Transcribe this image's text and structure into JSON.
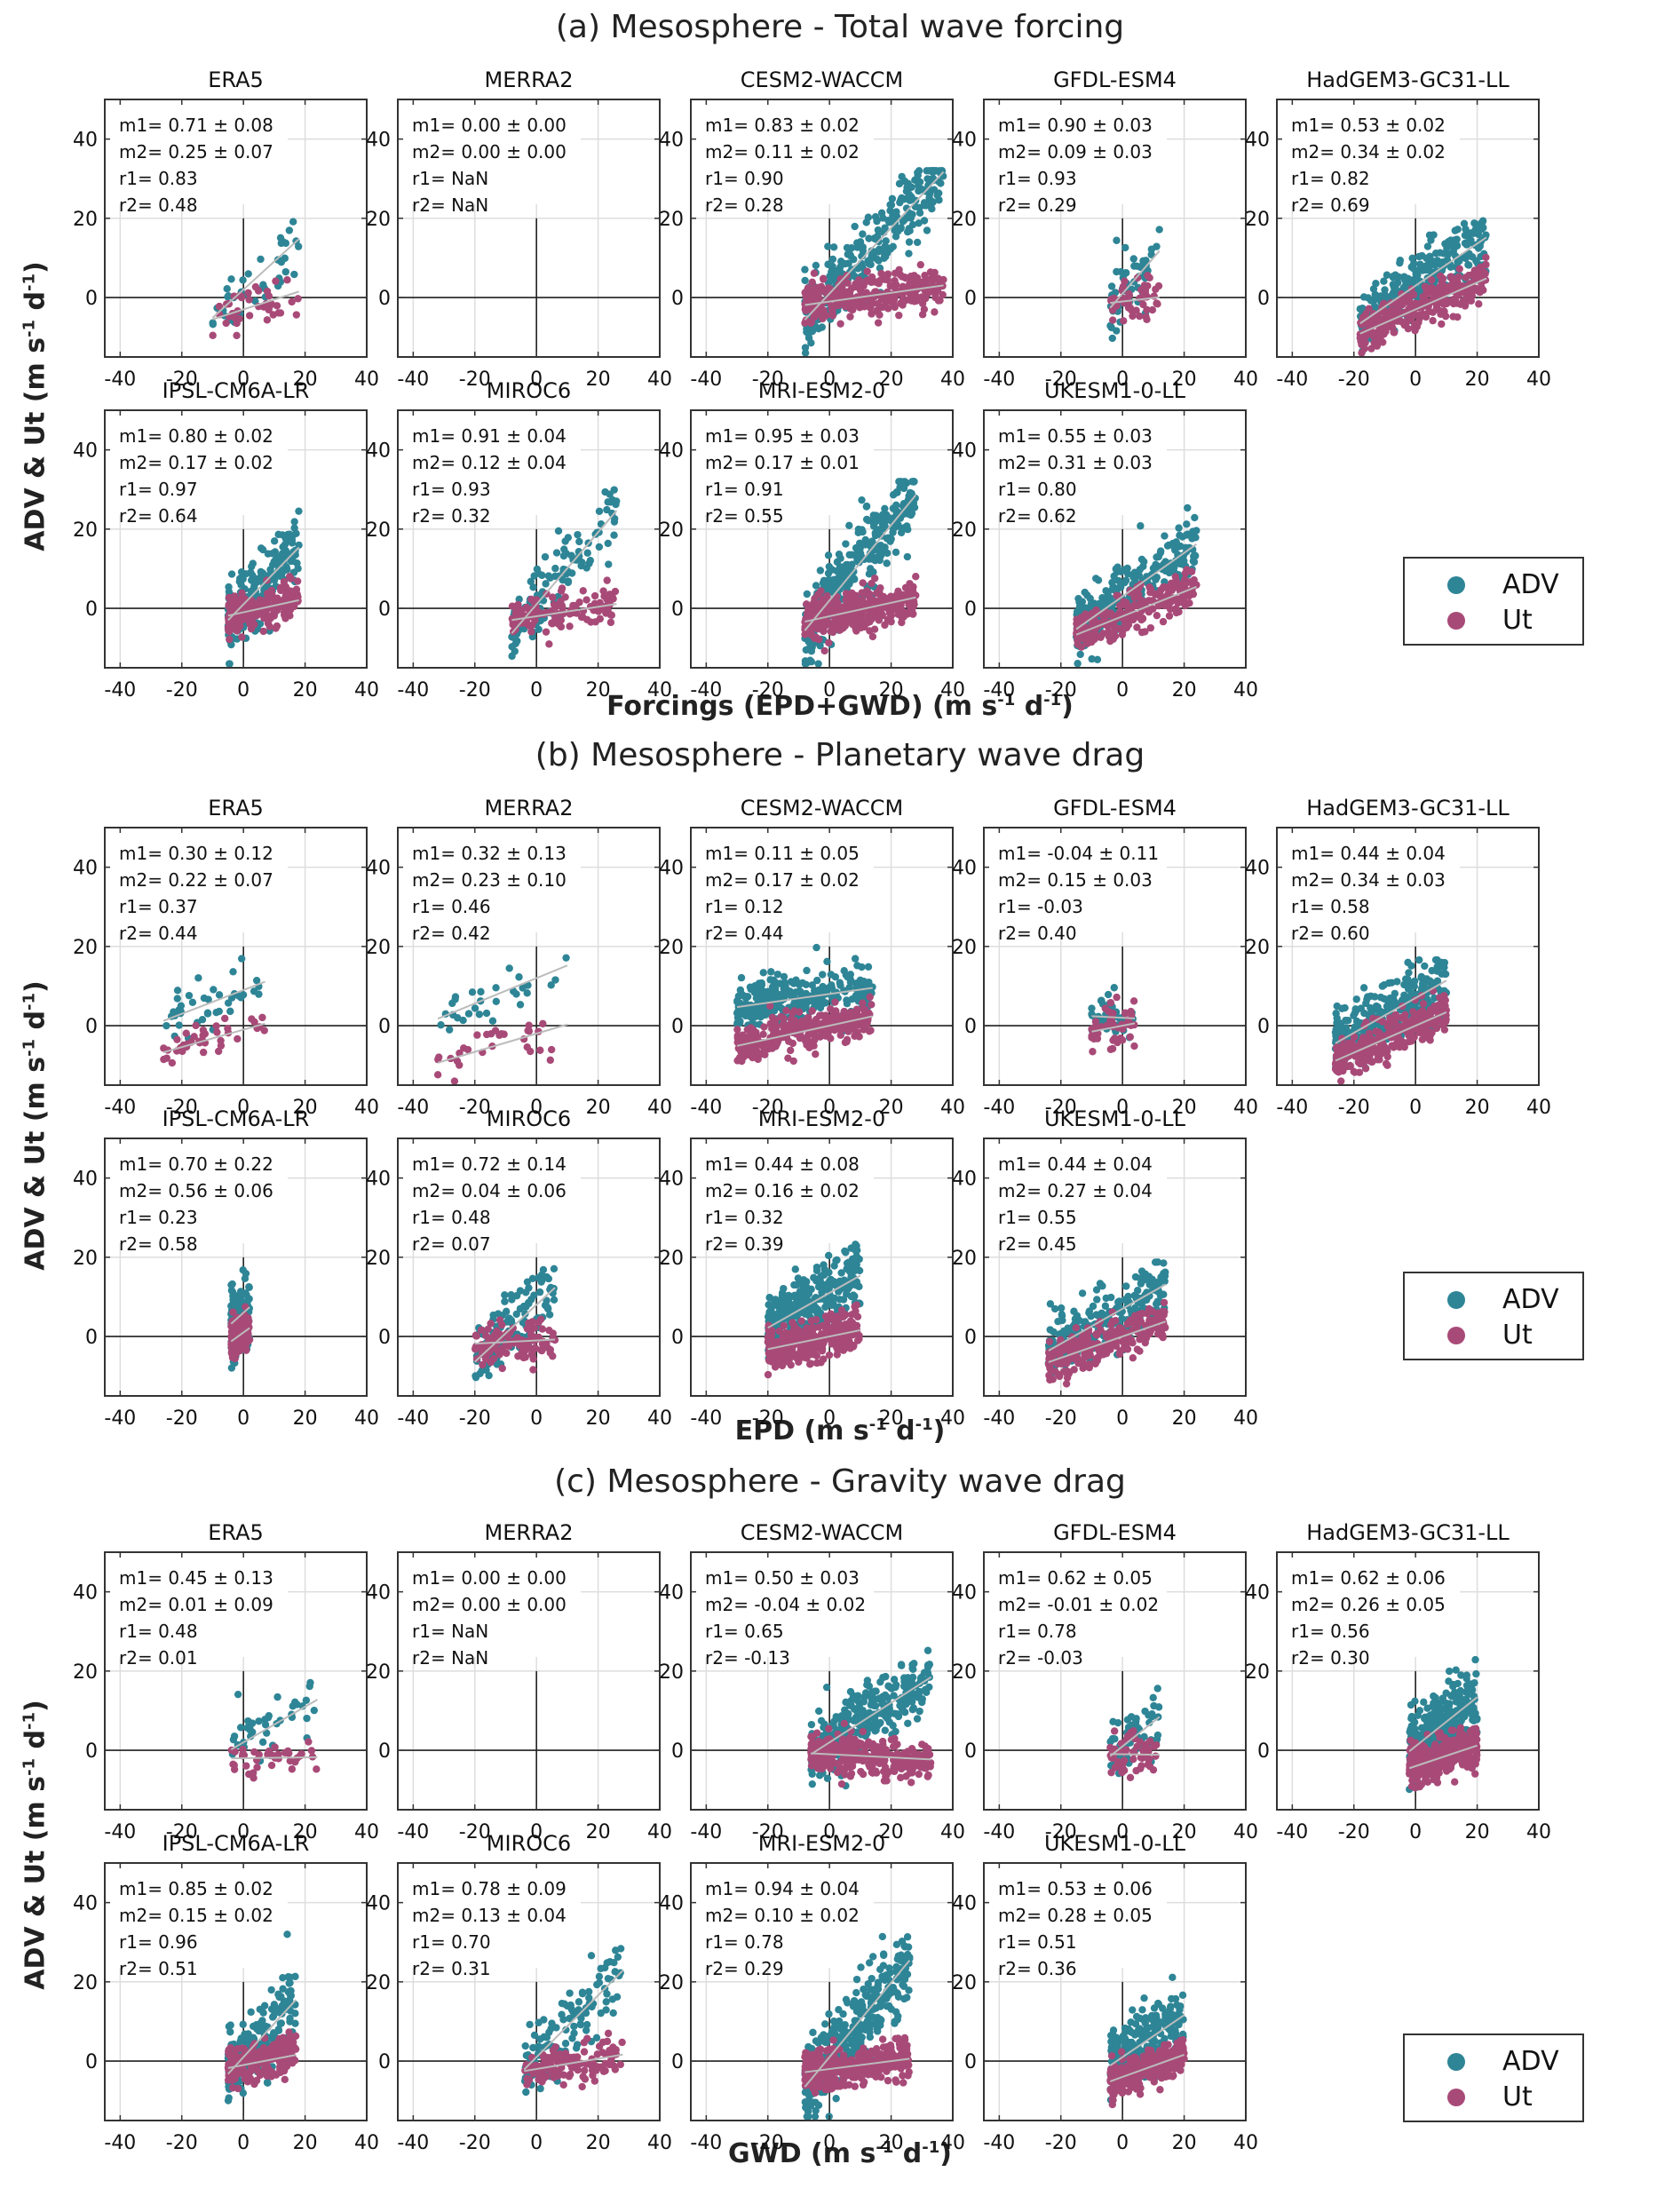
{
  "colors": {
    "adv": "#2e8596",
    "ut": "#a84a78",
    "fit": "#bbbbbb",
    "axis": "#222222",
    "grid": "#dddddd"
  },
  "legend": {
    "items": [
      {
        "label": "ADV",
        "color": "#2e8596"
      },
      {
        "label": "Ut",
        "color": "#a84a78"
      }
    ]
  },
  "sections": [
    {
      "title": "(a) Mesosphere - Total wave forcing",
      "xlabel_main": "Forcings (EPD+GWD) (m s",
      "ylabel": "ADV & Ut  (m s"
    },
    {
      "title": "(b) Mesosphere - Planetary wave drag",
      "xlabel_main": "EPD (m s",
      "ylabel": "ADV & Ut (m s"
    },
    {
      "title": "(c) Mesosphere - Gravity wave drag",
      "xlabel_main": "GWD (m s",
      "ylabel": "ADV & Ut (m s"
    }
  ],
  "units": {
    "sup1": "-1",
    "d": " d",
    "close": ")"
  },
  "chart_data": [
    {
      "type": "scatter",
      "title": "(a) Mesosphere - Total wave forcing",
      "xlabel": "Forcings (EPD+GWD) (m s-1 d-1)",
      "ylabel": "ADV & Ut  (m s-1 d-1)",
      "xlim": [
        -45,
        40
      ],
      "ylim": [
        -15,
        50
      ],
      "xticks": [
        "-40",
        "-20",
        "0",
        "20",
        "40"
      ],
      "yticks": [
        "0",
        "20",
        "40"
      ],
      "grid": true,
      "legend": "right",
      "series_names": [
        "ADV",
        "Ut"
      ],
      "panels": [
        {
          "name": "ERA5",
          "m1": "0.71 ± 0.08",
          "m2": "0.25 ± 0.07",
          "r1": "0.83",
          "r2": "0.48",
          "slope_adv": 0.71,
          "slope_ut": 0.25,
          "xrange": [
            -10,
            18
          ],
          "n": 40,
          "int_adv": 2,
          "int_ut": -3
        },
        {
          "name": "MERRA2",
          "m1": "0.00 ± 0.00",
          "m2": "0.00 ± 0.00",
          "r1": "NaN",
          "r2": "NaN",
          "slope_adv": 0,
          "slope_ut": 0,
          "xrange": [
            0,
            0
          ],
          "n": 0,
          "int_adv": 0,
          "int_ut": 0
        },
        {
          "name": "CESM2-WACCM",
          "m1": "0.83 ± 0.02",
          "m2": "0.11 ± 0.02",
          "r1": "0.90",
          "r2": "0.28",
          "slope_adv": 0.83,
          "slope_ut": 0.11,
          "xrange": [
            -8,
            37
          ],
          "n": 300,
          "int_adv": 1,
          "int_ut": -1
        },
        {
          "name": "GFDL-ESM4",
          "m1": "0.90 ± 0.03",
          "m2": "0.09 ± 0.03",
          "r1": "0.93",
          "r2": "0.29",
          "slope_adv": 0.9,
          "slope_ut": 0.09,
          "xrange": [
            -4,
            12
          ],
          "n": 50,
          "int_adv": 1,
          "int_ut": -1
        },
        {
          "name": "HadGEM3-GC31-LL",
          "m1": "0.53 ± 0.02",
          "m2": "0.34 ± 0.02",
          "r1": "0.82",
          "r2": "0.69",
          "slope_adv": 0.53,
          "slope_ut": 0.34,
          "xrange": [
            -18,
            23
          ],
          "n": 300,
          "int_adv": 3,
          "int_ut": -3
        },
        {
          "name": "IPSL-CM6A-LR",
          "m1": "0.80 ± 0.02",
          "m2": "0.17 ± 0.02",
          "r1": "0.97",
          "r2": "0.64",
          "slope_adv": 0.8,
          "slope_ut": 0.17,
          "xrange": [
            -5,
            18
          ],
          "n": 200,
          "int_adv": 1,
          "int_ut": -1
        },
        {
          "name": "MIROC6",
          "m1": "0.91 ± 0.04",
          "m2": "0.12 ± 0.04",
          "r1": "0.93",
          "r2": "0.32",
          "slope_adv": 0.91,
          "slope_ut": 0.12,
          "xrange": [
            -8,
            26
          ],
          "n": 120,
          "int_adv": 1,
          "int_ut": -2
        },
        {
          "name": "MRI-ESM2-0",
          "m1": "0.95 ± 0.03",
          "m2": "0.17 ± 0.01",
          "r1": "0.91",
          "r2": "0.55",
          "slope_adv": 0.95,
          "slope_ut": 0.17,
          "xrange": [
            -8,
            28
          ],
          "n": 350,
          "int_adv": 2,
          "int_ut": -2
        },
        {
          "name": "UKESM1-0-LL",
          "m1": "0.55 ± 0.03",
          "m2": "0.31 ± 0.03",
          "r1": "0.80",
          "r2": "0.62",
          "slope_adv": 0.55,
          "slope_ut": 0.31,
          "xrange": [
            -15,
            24
          ],
          "n": 250,
          "int_adv": 3,
          "int_ut": -2
        }
      ]
    },
    {
      "type": "scatter",
      "title": "(b) Mesosphere - Planetary wave drag",
      "xlabel": "EPD (m s-1 d-1)",
      "ylabel": "ADV & Ut (m s-1 d-1)",
      "xlim": [
        -45,
        40
      ],
      "ylim": [
        -15,
        50
      ],
      "xticks": [
        "-40",
        "-20",
        "0",
        "20",
        "40"
      ],
      "yticks": [
        "0",
        "20",
        "40"
      ],
      "grid": true,
      "legend": "right",
      "series_names": [
        "ADV",
        "Ut"
      ],
      "panels": [
        {
          "name": "ERA5",
          "m1": "0.30 ± 0.12",
          "m2": "0.22 ± 0.07",
          "r1": "0.37",
          "r2": "0.44",
          "slope_adv": 0.3,
          "slope_ut": 0.22,
          "xrange": [
            -26,
            7
          ],
          "n": 40,
          "int_adv": 9,
          "int_ut": -1
        },
        {
          "name": "MERRA2",
          "m1": "0.32 ± 0.13",
          "m2": "0.23 ± 0.10",
          "r1": "0.46",
          "r2": "0.42",
          "slope_adv": 0.32,
          "slope_ut": 0.23,
          "xrange": [
            -32,
            10
          ],
          "n": 30,
          "int_adv": 12,
          "int_ut": -2
        },
        {
          "name": "CESM2-WACCM",
          "m1": "0.11 ± 0.05",
          "m2": "0.17 ± 0.02",
          "r1": "0.12",
          "r2": "0.44",
          "slope_adv": 0.11,
          "slope_ut": 0.17,
          "xrange": [
            -30,
            14
          ],
          "n": 300,
          "int_adv": 8,
          "int_ut": 0
        },
        {
          "name": "GFDL-ESM4",
          "m1": "-0.04 ± 0.11",
          "m2": "0.15 ± 0.03",
          "r1": "-0.03",
          "r2": "0.40",
          "slope_adv": -0.04,
          "slope_ut": 0.15,
          "xrange": [
            -10,
            4
          ],
          "n": 50,
          "int_adv": 2,
          "int_ut": 0
        },
        {
          "name": "HadGEM3-GC31-LL",
          "m1": "0.44 ± 0.04",
          "m2": "0.34 ± 0.03",
          "r1": "0.58",
          "r2": "0.60",
          "slope_adv": 0.44,
          "slope_ut": 0.34,
          "xrange": [
            -26,
            10
          ],
          "n": 300,
          "int_adv": 7,
          "int_ut": 0
        },
        {
          "name": "IPSL-CM6A-LR",
          "m1": "0.70 ± 0.22",
          "m2": "0.56 ± 0.06",
          "r1": "0.23",
          "r2": "0.58",
          "slope_adv": 0.7,
          "slope_ut": 0.56,
          "xrange": [
            -4,
            2
          ],
          "n": 150,
          "int_adv": 6,
          "int_ut": 1
        },
        {
          "name": "MIROC6",
          "m1": "0.72 ± 0.14",
          "m2": "0.04 ± 0.06",
          "r1": "0.48",
          "r2": "0.07",
          "slope_adv": 0.72,
          "slope_ut": 0.04,
          "xrange": [
            -20,
            6
          ],
          "n": 120,
          "int_adv": 8,
          "int_ut": -1
        },
        {
          "name": "MRI-ESM2-0",
          "m1": "0.44 ± 0.08",
          "m2": "0.16 ± 0.02",
          "r1": "0.32",
          "r2": "0.39",
          "slope_adv": 0.44,
          "slope_ut": 0.16,
          "xrange": [
            -20,
            10
          ],
          "n": 350,
          "int_adv": 11,
          "int_ut": 0
        },
        {
          "name": "UKESM1-0-LL",
          "m1": "0.44 ± 0.04",
          "m2": "0.27 ± 0.04",
          "r1": "0.55",
          "r2": "0.45",
          "slope_adv": 0.44,
          "slope_ut": 0.27,
          "xrange": [
            -24,
            14
          ],
          "n": 250,
          "int_adv": 7,
          "int_ut": 0
        }
      ]
    },
    {
      "type": "scatter",
      "title": "(c) Mesosphere - Gravity wave drag",
      "xlabel": "GWD (m s-1 d-1)",
      "ylabel": "ADV & Ut (m s-1 d-1)",
      "xlim": [
        -45,
        40
      ],
      "ylim": [
        -15,
        50
      ],
      "xticks": [
        "-40",
        "-20",
        "0",
        "20",
        "40"
      ],
      "yticks": [
        "0",
        "20",
        "40"
      ],
      "grid": true,
      "legend": "right",
      "series_names": [
        "ADV",
        "Ut"
      ],
      "panels": [
        {
          "name": "ERA5",
          "m1": "0.45 ± 0.13",
          "m2": "0.01 ± 0.09",
          "r1": "0.48",
          "r2": "0.01",
          "slope_adv": 0.45,
          "slope_ut": 0.01,
          "xrange": [
            -4,
            24
          ],
          "n": 40,
          "int_adv": 2,
          "int_ut": -2
        },
        {
          "name": "MERRA2",
          "m1": "0.00 ± 0.00",
          "m2": "0.00 ± 0.00",
          "r1": "NaN",
          "r2": "NaN",
          "slope_adv": 0,
          "slope_ut": 0,
          "xrange": [
            0,
            0
          ],
          "n": 0,
          "int_adv": 0,
          "int_ut": 0
        },
        {
          "name": "CESM2-WACCM",
          "m1": "0.50 ± 0.03",
          "m2": "-0.04 ± 0.02",
          "r1": "0.65",
          "r2": "-0.13",
          "slope_adv": 0.5,
          "slope_ut": -0.04,
          "xrange": [
            -6,
            33
          ],
          "n": 300,
          "int_adv": 2,
          "int_ut": -1
        },
        {
          "name": "GFDL-ESM4",
          "m1": "0.62 ± 0.05",
          "m2": "-0.01 ± 0.02",
          "r1": "0.78",
          "r2": "-0.03",
          "slope_adv": 0.62,
          "slope_ut": -0.01,
          "xrange": [
            -4,
            12
          ],
          "n": 60,
          "int_adv": 1,
          "int_ut": -1
        },
        {
          "name": "HadGEM3-GC31-LL",
          "m1": "0.62 ± 0.06",
          "m2": "0.26 ± 0.05",
          "r1": "0.56",
          "r2": "0.30",
          "slope_adv": 0.62,
          "slope_ut": 0.26,
          "xrange": [
            -2,
            20
          ],
          "n": 300,
          "int_adv": 1,
          "int_ut": -4
        },
        {
          "name": "IPSL-CM6A-LR",
          "m1": "0.85 ± 0.02",
          "m2": "0.15 ± 0.02",
          "r1": "0.96",
          "r2": "0.51",
          "slope_adv": 0.85,
          "slope_ut": 0.15,
          "xrange": [
            -5,
            17
          ],
          "n": 200,
          "int_adv": 1,
          "int_ut": -1
        },
        {
          "name": "MIROC6",
          "m1": "0.78 ± 0.09",
          "m2": "0.13 ± 0.04",
          "r1": "0.70",
          "r2": "0.31",
          "slope_adv": 0.78,
          "slope_ut": 0.13,
          "xrange": [
            -4,
            28
          ],
          "n": 120,
          "int_adv": 1,
          "int_ut": -2
        },
        {
          "name": "MRI-ESM2-0",
          "m1": "0.94 ± 0.04",
          "m2": "0.10 ± 0.02",
          "r1": "0.78",
          "r2": "0.29",
          "slope_adv": 0.94,
          "slope_ut": 0.1,
          "xrange": [
            -8,
            26
          ],
          "n": 350,
          "int_adv": 1,
          "int_ut": -2
        },
        {
          "name": "UKESM1-0-LL",
          "m1": "0.53 ± 0.06",
          "m2": "0.28 ± 0.05",
          "r1": "0.51",
          "r2": "0.36",
          "slope_adv": 0.53,
          "slope_ut": 0.28,
          "xrange": [
            -4,
            20
          ],
          "n": 250,
          "int_adv": 1,
          "int_ut": -4
        }
      ]
    }
  ]
}
